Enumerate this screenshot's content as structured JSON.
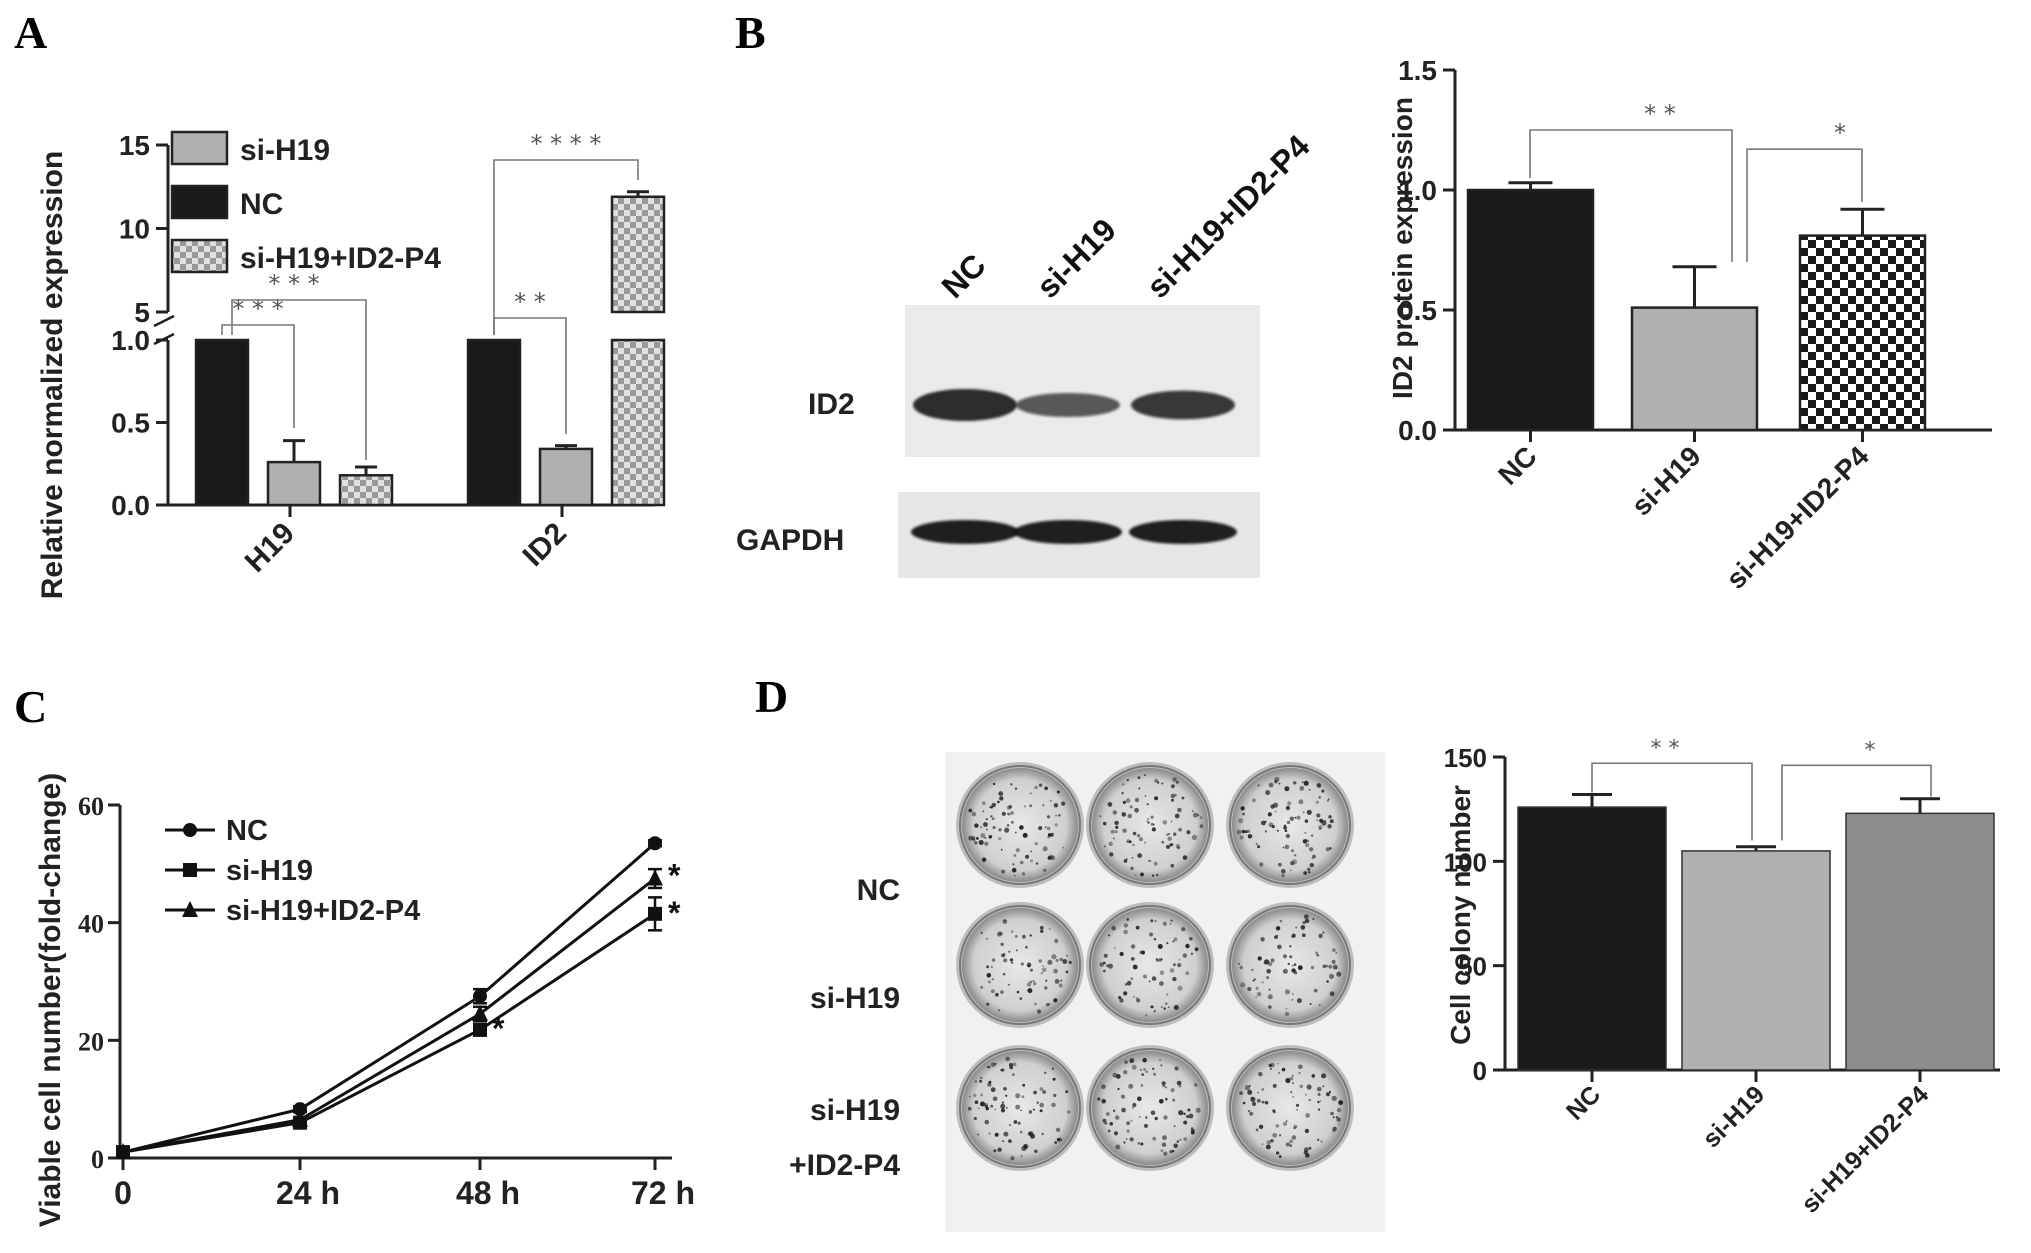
{
  "panels": {
    "a": "A",
    "b": "B",
    "c": "C",
    "d": "D"
  },
  "colors": {
    "nc": "#1a1a1a",
    "si": "#b0b0b0",
    "check_dark": "#999999",
    "check_light": "#e0e0e0",
    "d_rescue": "#8c8c8c",
    "axis": "#222222",
    "sig": "#555555"
  },
  "blot": {
    "lanes": [
      "NC",
      "si-H19",
      "si-H19+ID2-P4"
    ],
    "rows": [
      "ID2",
      "GAPDH"
    ],
    "id2_band_strength": [
      1.0,
      0.5,
      0.8
    ],
    "gapdh_band_strength": [
      1.0,
      1.0,
      1.0
    ]
  },
  "colony": {
    "rows": [
      "NC",
      "si-H19",
      "si-H19",
      "+ID2-P4"
    ],
    "wells_per_row": 3,
    "dot_density": [
      1.0,
      0.8,
      0.95
    ]
  },
  "chart_data": [
    {
      "id": "A",
      "type": "bar",
      "ylabel": "Relative normalized expression",
      "categories": [
        "H19",
        "ID2"
      ],
      "series": [
        {
          "name": "NC",
          "values": [
            1.0,
            1.0
          ],
          "errors": [
            0,
            0
          ]
        },
        {
          "name": "si-H19",
          "values": [
            0.26,
            0.34
          ],
          "errors": [
            0.13,
            0.02
          ]
        },
        {
          "name": "si-H19+ID2-P4",
          "values": [
            0.18,
            11.9
          ],
          "errors": [
            0.05,
            0.3
          ]
        }
      ],
      "legend": [
        "si-H19",
        "NC",
        "si-H19+ID2-P4"
      ],
      "legend_position": "top-left",
      "y_axis": {
        "broken": true,
        "lower_range": [
          0,
          1.0
        ],
        "lower_ticks": [
          "0.0",
          "0.5",
          "1.0"
        ],
        "upper_range": [
          5,
          15
        ],
        "upper_ticks": [
          "5",
          "10",
          "15"
        ]
      },
      "significance": [
        {
          "label": "* * *",
          "group": "H19"
        },
        {
          "label": "* * *",
          "group": "H19"
        },
        {
          "label": "* *",
          "group": "ID2"
        },
        {
          "label": "* * * *",
          "group": "ID2"
        }
      ]
    },
    {
      "id": "B",
      "type": "bar",
      "ylabel": "ID2 protein expression",
      "categories": [
        "NC",
        "si-H19",
        "si-H19+ID2-P4"
      ],
      "values": [
        1.0,
        0.51,
        0.81
      ],
      "errors": [
        0.03,
        0.17,
        0.11
      ],
      "ylim": [
        0,
        1.5
      ],
      "yticks": [
        "0.0",
        "0.5",
        "1.0",
        "1.5"
      ],
      "significance": [
        {
          "label": "* *",
          "from": 0,
          "to": 1
        },
        {
          "label": "*",
          "from": 1,
          "to": 2
        }
      ]
    },
    {
      "id": "C",
      "type": "line",
      "ylabel": "Viable cell number(fold-change)",
      "x": [
        "0",
        "24 h",
        "48 h",
        "72 h"
      ],
      "series": [
        {
          "name": "NC",
          "marker": "circle",
          "values": [
            1,
            8.3,
            27.5,
            53.5
          ],
          "errors": [
            0,
            0.5,
            1.2,
            0.5
          ]
        },
        {
          "name": "si-H19",
          "marker": "square",
          "values": [
            1,
            6,
            21.8,
            41.5
          ],
          "errors": [
            0,
            0.4,
            1.0,
            2.8
          ]
        },
        {
          "name": "si-H19+ID2-P4",
          "marker": "triangle",
          "values": [
            1,
            6.5,
            24.5,
            47.5
          ],
          "errors": [
            0,
            0.4,
            1.2,
            1.6
          ]
        }
      ],
      "ylim": [
        0,
        60
      ],
      "yticks": [
        "0",
        "20",
        "40",
        "60"
      ],
      "annotations": [
        "*",
        "*",
        "*"
      ],
      "legend_position": "top-left"
    },
    {
      "id": "D",
      "type": "bar",
      "ylabel": "Cell colony number",
      "categories": [
        "NC",
        "si-H19",
        "si-H19+ID2-P4"
      ],
      "values": [
        126,
        105,
        123
      ],
      "errors": [
        6,
        2,
        7
      ],
      "ylim": [
        0,
        150
      ],
      "yticks": [
        "0",
        "50",
        "100",
        "150"
      ],
      "significance": [
        {
          "label": "* *",
          "from": 0,
          "to": 1
        },
        {
          "label": "*",
          "from": 1,
          "to": 2
        }
      ]
    }
  ]
}
